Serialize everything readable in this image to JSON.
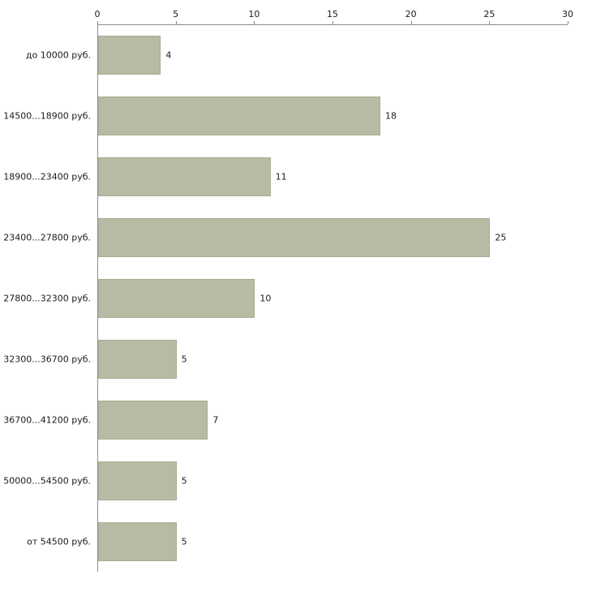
{
  "chart_data": {
    "type": "bar",
    "orientation": "horizontal",
    "title": "",
    "xlabel": "",
    "ylabel": "",
    "categories": [
      "до 10000 руб.",
      "14500...18900 руб.",
      "18900...23400 руб.",
      "23400...27800 руб.",
      "27800...32300 руб.",
      "32300...36700 руб.",
      "36700...41200 руб.",
      "50000...54500 руб.",
      "от 54500 руб."
    ],
    "values": [
      4,
      18,
      11,
      25,
      10,
      5,
      7,
      5,
      5
    ],
    "x_ticks": [
      0,
      5,
      10,
      15,
      20,
      25,
      30
    ],
    "xlim": [
      0,
      30
    ],
    "grid": false,
    "legend": null,
    "data_labels": true,
    "colors": {
      "bar_fill": "#b6bca3",
      "bar_border": "#a6ac92",
      "axis": "#8c8c8c",
      "text": "#1a1a1a",
      "background": "#ffffff"
    }
  }
}
